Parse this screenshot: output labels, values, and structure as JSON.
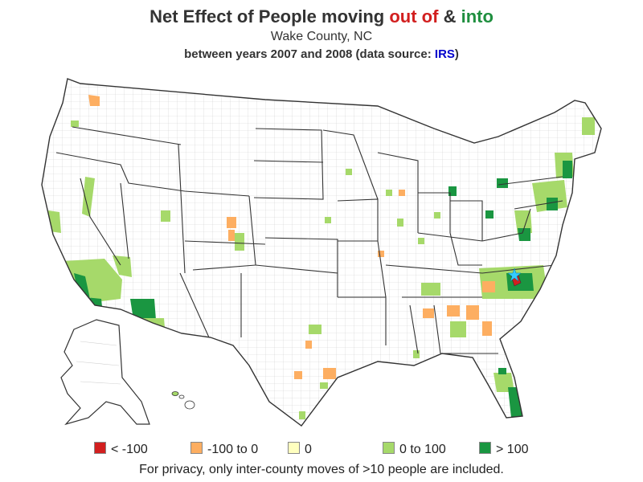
{
  "title": {
    "prefix": "Net Effect of People moving ",
    "out": "out of",
    "amp": " & ",
    "into": "into"
  },
  "subtitle": "Wake County, NC",
  "subtitle2": {
    "text": "between years 2007 and 2008 (data source: ",
    "link": "IRS",
    "end": ")"
  },
  "legend": [
    {
      "label": "< -100",
      "color": "#d21f1f"
    },
    {
      "label": "-100 to 0",
      "color": "#fdae61"
    },
    {
      "label": "0",
      "color": "#ffffbf"
    },
    {
      "label": "0 to 100",
      "color": "#a6d96a"
    },
    {
      "label": "> 100",
      "color": "#1a9641"
    }
  ],
  "note": "For privacy, only inter-county moves of >10 people are included.",
  "colors": {
    "state_border": "#333333",
    "county_border": "#c8c8c8",
    "lt_neg100": "#d21f1f",
    "neg100_to_0": "#fdae61",
    "zero": "#ffffbf",
    "zero_to_100": "#a6d96a",
    "gt_100": "#1a9641",
    "home_marker": "#33ccff"
  }
}
